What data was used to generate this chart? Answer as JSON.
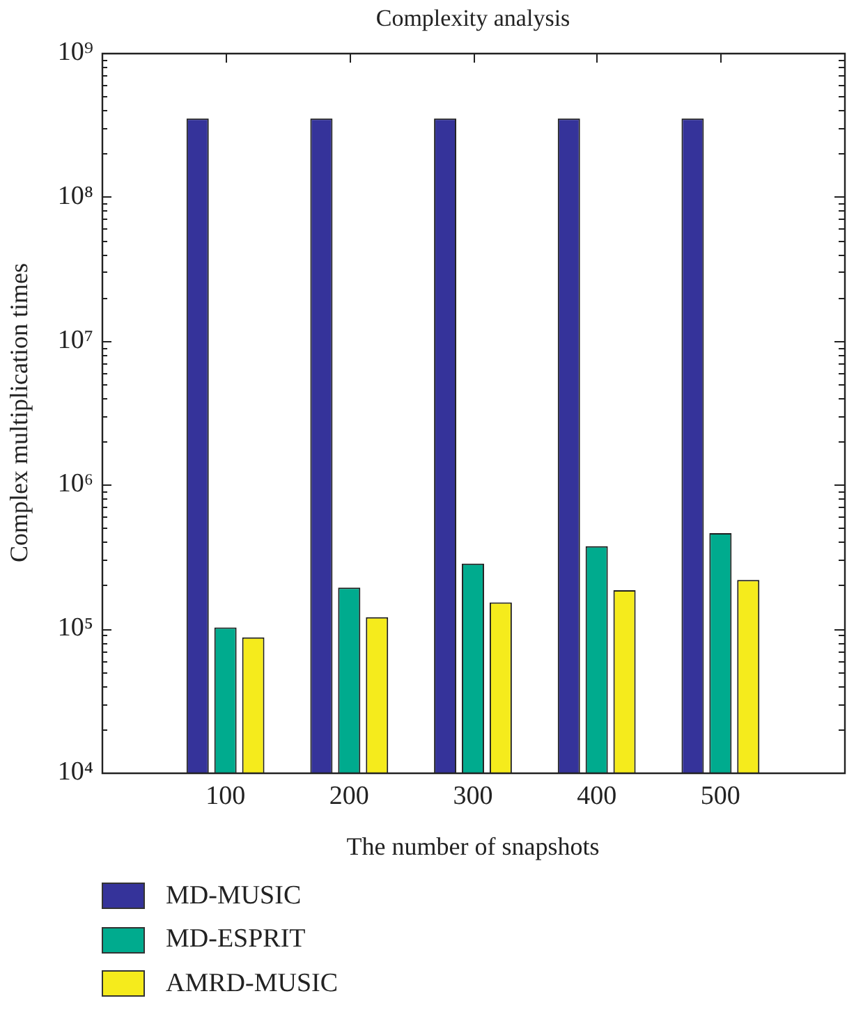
{
  "chart_data": {
    "type": "bar",
    "title": "Complexity analysis",
    "xlabel": "The number of snapshots",
    "ylabel": "Complex multiplication times",
    "x": [
      100,
      200,
      300,
      400,
      500
    ],
    "xlim": [
      0,
      600
    ],
    "xticks": [
      100,
      200,
      300,
      400,
      500
    ],
    "ylim": [
      10000,
      1000000000
    ],
    "log": "y",
    "yticks": [
      {
        "value": 10000,
        "label": "10⁴"
      },
      {
        "value": 20000,
        "label": null
      },
      {
        "value": 30000,
        "label": null
      },
      {
        "value": 40000,
        "label": null
      },
      {
        "value": 50000,
        "label": null
      },
      {
        "value": 60000,
        "label": null
      },
      {
        "value": 70000,
        "label": null
      },
      {
        "value": 80000,
        "label": null
      },
      {
        "value": 90000,
        "label": null
      },
      {
        "value": 100000,
        "label": "10⁵"
      },
      {
        "value": 200000,
        "label": null
      },
      {
        "value": 300000,
        "label": null
      },
      {
        "value": 400000,
        "label": null
      },
      {
        "value": 500000,
        "label": null
      },
      {
        "value": 600000,
        "label": null
      },
      {
        "value": 700000,
        "label": null
      },
      {
        "value": 800000,
        "label": null
      },
      {
        "value": 900000,
        "label": null
      },
      {
        "value": 1000000,
        "label": "10⁶"
      },
      {
        "value": 2000000,
        "label": null
      },
      {
        "value": 3000000,
        "label": null
      },
      {
        "value": 4000000,
        "label": null
      },
      {
        "value": 5000000,
        "label": null
      },
      {
        "value": 6000000,
        "label": null
      },
      {
        "value": 7000000,
        "label": null
      },
      {
        "value": 8000000,
        "label": null
      },
      {
        "value": 9000000,
        "label": null
      },
      {
        "value": 10000000,
        "label": "10⁷"
      },
      {
        "value": 20000000,
        "label": null
      },
      {
        "value": 30000000,
        "label": null
      },
      {
        "value": 40000000,
        "label": null
      },
      {
        "value": 50000000,
        "label": null
      },
      {
        "value": 60000000,
        "label": null
      },
      {
        "value": 70000000,
        "label": null
      },
      {
        "value": 80000000,
        "label": null
      },
      {
        "value": 90000000,
        "label": null
      },
      {
        "value": 100000000,
        "label": "10⁸"
      },
      {
        "value": 200000000,
        "label": null
      },
      {
        "value": 300000000,
        "label": null
      },
      {
        "value": 400000000,
        "label": null
      },
      {
        "value": 500000000,
        "label": null
      },
      {
        "value": 600000000,
        "label": null
      },
      {
        "value": 700000000,
        "label": null
      },
      {
        "value": 800000000,
        "label": null
      },
      {
        "value": 900000000,
        "label": null
      },
      {
        "value": 1000000000,
        "label": "10⁹"
      }
    ],
    "legend": "bottom left",
    "series": [
      {
        "name": "MD-MUSIC",
        "color": "#35339a",
        "values": [
          350000000,
          350000000,
          350000000,
          350000000,
          350000000
        ]
      },
      {
        "name": "MD-ESPRIT",
        "color": "#00ab8e",
        "values": [
          102000,
          193000,
          283000,
          374000,
          461000
        ]
      },
      {
        "name": "AMRD-MUSIC",
        "color": "#f5eb1c",
        "values": [
          87000,
          120000,
          152000,
          185000,
          218000
        ]
      }
    ]
  }
}
